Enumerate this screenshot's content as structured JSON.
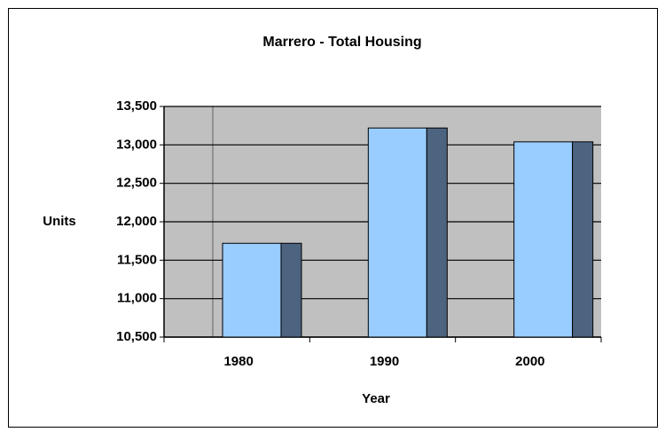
{
  "chart_data": {
    "type": "bar",
    "title": "Marrero - Total Housing",
    "x_label": "Year",
    "y_label": "Units",
    "categories": [
      "1980",
      "1990",
      "2000"
    ],
    "values": [
      11720,
      13220,
      13040
    ],
    "color": "#99ccff",
    "depth_color": "#4d6480",
    "plot_background": "#c0c0c0",
    "ylim": [
      10500,
      13500
    ],
    "yticks": [
      {
        "value": 10500,
        "label": "10,500"
      },
      {
        "value": 11000,
        "label": "11,000"
      },
      {
        "value": 11500,
        "label": "11,500"
      },
      {
        "value": 12000,
        "label": "12,000"
      },
      {
        "value": 12500,
        "label": "12,500"
      },
      {
        "value": 13000,
        "label": "13,000"
      },
      {
        "value": 13500,
        "label": "13,500"
      }
    ],
    "grid": true
  }
}
